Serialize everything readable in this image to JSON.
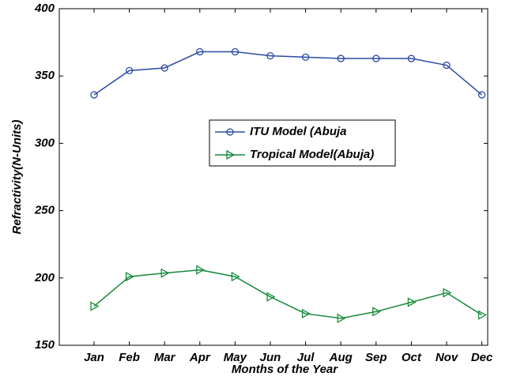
{
  "chart_data": {
    "type": "line",
    "x_label": "Months of the Year",
    "y_label": "Refractivity(N-Units)",
    "categories": [
      "Jan",
      "Feb",
      "Mar",
      "Apr",
      "May",
      "Jun",
      "Jul",
      "Aug",
      "Sep",
      "Oct",
      "Nov",
      "Dec"
    ],
    "series": [
      {
        "name": "ITU Model (Abuja",
        "color": "#2b4aa5",
        "marker": "circle",
        "values": [
          336,
          354,
          356,
          368,
          368,
          365,
          364,
          363,
          363,
          363,
          358,
          336
        ]
      },
      {
        "name": "Tropical Model(Abuja)",
        "color": "#178a3a",
        "marker": "triangle-right",
        "values": [
          179,
          201,
          203.6,
          206,
          201,
          186,
          173.5,
          170,
          175,
          182,
          189,
          172.5
        ]
      }
    ],
    "ylim": [
      150,
      400
    ],
    "yticks": [
      150,
      200,
      250,
      300,
      350,
      400
    ],
    "grid": false
  }
}
